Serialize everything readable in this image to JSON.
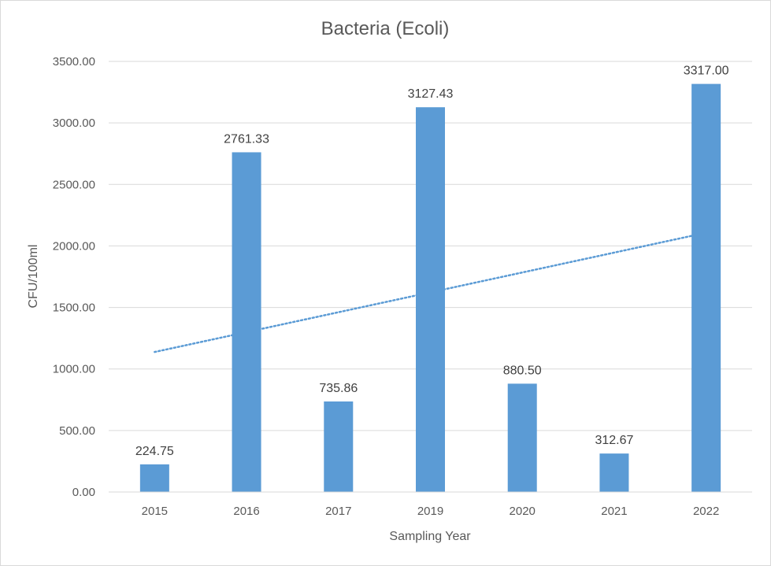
{
  "chart_data": {
    "type": "bar",
    "title": "Bacteria (Ecoli)",
    "xlabel": "Sampling Year",
    "ylabel": "CFU/100ml",
    "categories": [
      "2015",
      "2016",
      "2017",
      "2019",
      "2020",
      "2021",
      "2022"
    ],
    "values": [
      224.75,
      2761.33,
      735.86,
      3127.43,
      880.5,
      312.67,
      3317.0
    ],
    "value_labels": [
      "224.75",
      "2761.33",
      "735.86",
      "3127.43",
      "880.50",
      "312.67",
      "3317.00"
    ],
    "ylim": [
      0,
      3500
    ],
    "yticks": [
      0,
      500,
      1000,
      1500,
      2000,
      2500,
      3000,
      3500
    ],
    "ytick_labels": [
      "0.00",
      "500.00",
      "1000.00",
      "1500.00",
      "2000.00",
      "2500.00",
      "3000.00",
      "3500.00"
    ],
    "grid": true,
    "legend": "none",
    "trendline": {
      "type": "linear",
      "style": "dotted"
    },
    "colors": {
      "bar": "#5b9bd5",
      "trendline": "#5b9bd5",
      "grid": "#d9d9d9",
      "text": "#595959"
    }
  }
}
